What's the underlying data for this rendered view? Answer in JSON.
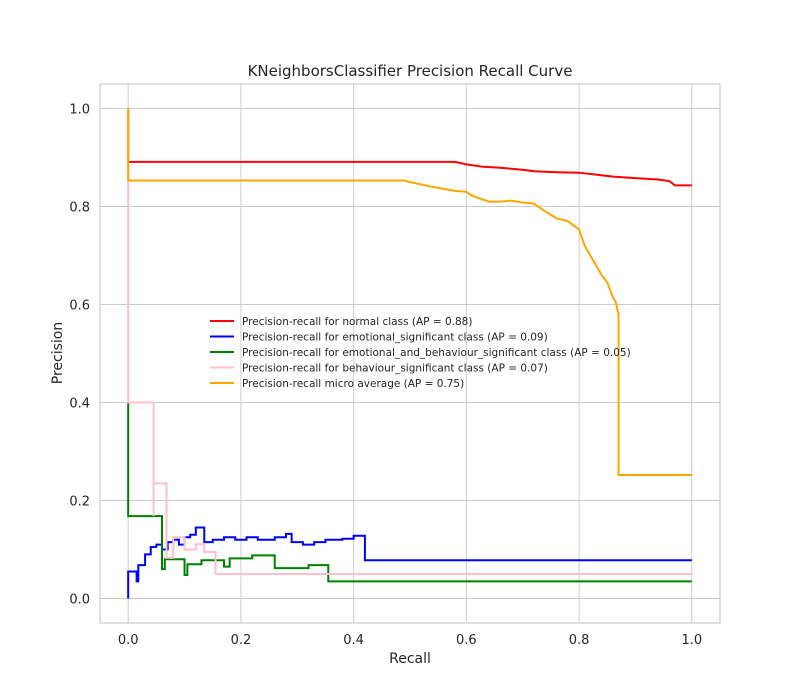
{
  "chart_data": {
    "type": "line",
    "title": "KNeighborsClassifier Precision Recall Curve",
    "xlabel": "Recall",
    "ylabel": "Precision",
    "xlim": [
      -0.05,
      1.05
    ],
    "ylim": [
      -0.05,
      1.05
    ],
    "x_ticks": [
      0.0,
      0.2,
      0.4,
      0.6,
      0.8,
      1.0
    ],
    "y_ticks": [
      0.0,
      0.2,
      0.4,
      0.6,
      0.8,
      1.0
    ],
    "x_tick_labels": [
      "0.0",
      "0.2",
      "0.4",
      "0.6",
      "0.8",
      "1.0"
    ],
    "y_tick_labels": [
      "0.0",
      "0.2",
      "0.4",
      "0.6",
      "0.8",
      "1.0"
    ],
    "grid": true,
    "legend_position": "center",
    "series": [
      {
        "name": "Precision-recall for normal class (AP = 0.88)",
        "color": "#ff0000",
        "points": [
          [
            0,
            1.0
          ],
          [
            0,
            0.891
          ],
          [
            0.58,
            0.891
          ],
          [
            0.6,
            0.886
          ],
          [
            0.63,
            0.881
          ],
          [
            0.66,
            0.879
          ],
          [
            0.7,
            0.875
          ],
          [
            0.72,
            0.872
          ],
          [
            0.76,
            0.87
          ],
          [
            0.8,
            0.869
          ],
          [
            0.83,
            0.865
          ],
          [
            0.86,
            0.861
          ],
          [
            0.9,
            0.858
          ],
          [
            0.94,
            0.855
          ],
          [
            0.96,
            0.852
          ],
          [
            0.97,
            0.843
          ],
          [
            1.0,
            0.843
          ]
        ]
      },
      {
        "name": "Precision-recall for emotional_significant class (AP = 0.09)",
        "color": "#0000ff",
        "points": [
          [
            0,
            0.0
          ],
          [
            0,
            0.055
          ],
          [
            0.015,
            0.055
          ],
          [
            0.015,
            0.035
          ],
          [
            0.018,
            0.035
          ],
          [
            0.018,
            0.068
          ],
          [
            0.03,
            0.068
          ],
          [
            0.03,
            0.09
          ],
          [
            0.04,
            0.09
          ],
          [
            0.04,
            0.105
          ],
          [
            0.05,
            0.105
          ],
          [
            0.05,
            0.11
          ],
          [
            0.06,
            0.11
          ],
          [
            0.06,
            0.1
          ],
          [
            0.07,
            0.1
          ],
          [
            0.07,
            0.115
          ],
          [
            0.08,
            0.115
          ],
          [
            0.08,
            0.12
          ],
          [
            0.09,
            0.12
          ],
          [
            0.09,
            0.11
          ],
          [
            0.1,
            0.11
          ],
          [
            0.1,
            0.125
          ],
          [
            0.11,
            0.125
          ],
          [
            0.11,
            0.13
          ],
          [
            0.12,
            0.13
          ],
          [
            0.12,
            0.145
          ],
          [
            0.135,
            0.145
          ],
          [
            0.135,
            0.115
          ],
          [
            0.15,
            0.115
          ],
          [
            0.15,
            0.12
          ],
          [
            0.17,
            0.12
          ],
          [
            0.17,
            0.125
          ],
          [
            0.19,
            0.125
          ],
          [
            0.19,
            0.12
          ],
          [
            0.21,
            0.12
          ],
          [
            0.21,
            0.125
          ],
          [
            0.23,
            0.125
          ],
          [
            0.23,
            0.12
          ],
          [
            0.26,
            0.12
          ],
          [
            0.26,
            0.125
          ],
          [
            0.28,
            0.125
          ],
          [
            0.28,
            0.132
          ],
          [
            0.29,
            0.132
          ],
          [
            0.29,
            0.115
          ],
          [
            0.31,
            0.115
          ],
          [
            0.31,
            0.11
          ],
          [
            0.33,
            0.11
          ],
          [
            0.33,
            0.115
          ],
          [
            0.35,
            0.115
          ],
          [
            0.35,
            0.12
          ],
          [
            0.38,
            0.12
          ],
          [
            0.38,
            0.122
          ],
          [
            0.4,
            0.122
          ],
          [
            0.4,
            0.128
          ],
          [
            0.42,
            0.128
          ],
          [
            0.42,
            0.078
          ],
          [
            1.0,
            0.078
          ]
        ]
      },
      {
        "name": "Precision-recall for emotional_and_behaviour_significant class (AP = 0.05)",
        "color": "#008000",
        "points": [
          [
            0,
            0.4
          ],
          [
            0,
            0.168
          ],
          [
            0.06,
            0.168
          ],
          [
            0.06,
            0.06
          ],
          [
            0.065,
            0.06
          ],
          [
            0.065,
            0.08
          ],
          [
            0.1,
            0.08
          ],
          [
            0.1,
            0.048
          ],
          [
            0.105,
            0.048
          ],
          [
            0.105,
            0.07
          ],
          [
            0.13,
            0.07
          ],
          [
            0.13,
            0.078
          ],
          [
            0.17,
            0.078
          ],
          [
            0.17,
            0.065
          ],
          [
            0.18,
            0.065
          ],
          [
            0.18,
            0.082
          ],
          [
            0.22,
            0.082
          ],
          [
            0.22,
            0.088
          ],
          [
            0.26,
            0.088
          ],
          [
            0.26,
            0.062
          ],
          [
            0.32,
            0.062
          ],
          [
            0.32,
            0.068
          ],
          [
            0.355,
            0.068
          ],
          [
            0.355,
            0.035
          ],
          [
            1.0,
            0.035
          ]
        ]
      },
      {
        "name": "Precision-recall for behaviour_significant class (AP = 0.07)",
        "color": "#ffc0cb",
        "points": [
          [
            0,
            1.0
          ],
          [
            0,
            0.4
          ],
          [
            0.045,
            0.4
          ],
          [
            0.045,
            0.168
          ],
          [
            0.045,
            0.235
          ],
          [
            0.068,
            0.235
          ],
          [
            0.068,
            0.083
          ],
          [
            0.08,
            0.083
          ],
          [
            0.08,
            0.125
          ],
          [
            0.1,
            0.125
          ],
          [
            0.1,
            0.1
          ],
          [
            0.12,
            0.1
          ],
          [
            0.12,
            0.111
          ],
          [
            0.135,
            0.111
          ],
          [
            0.135,
            0.095
          ],
          [
            0.155,
            0.095
          ],
          [
            0.155,
            0.05
          ],
          [
            0.35,
            0.05
          ],
          [
            0.35,
            0.05
          ],
          [
            1.0,
            0.05
          ]
        ]
      },
      {
        "name": "Precision-recall micro average (AP = 0.75)",
        "color": "#ffa500",
        "points": [
          [
            0,
            1.0
          ],
          [
            0,
            0.853
          ],
          [
            0.49,
            0.853
          ],
          [
            0.5,
            0.85
          ],
          [
            0.52,
            0.845
          ],
          [
            0.54,
            0.84
          ],
          [
            0.56,
            0.836
          ],
          [
            0.58,
            0.832
          ],
          [
            0.6,
            0.83
          ],
          [
            0.61,
            0.822
          ],
          [
            0.62,
            0.818
          ],
          [
            0.64,
            0.81
          ],
          [
            0.66,
            0.81
          ],
          [
            0.68,
            0.812
          ],
          [
            0.7,
            0.808
          ],
          [
            0.72,
            0.806
          ],
          [
            0.74,
            0.79
          ],
          [
            0.76,
            0.776
          ],
          [
            0.78,
            0.77
          ],
          [
            0.8,
            0.753
          ],
          [
            0.81,
            0.72
          ],
          [
            0.82,
            0.7
          ],
          [
            0.83,
            0.68
          ],
          [
            0.84,
            0.66
          ],
          [
            0.85,
            0.645
          ],
          [
            0.86,
            0.615
          ],
          [
            0.865,
            0.605
          ],
          [
            0.87,
            0.58
          ],
          [
            0.87,
            0.252
          ],
          [
            1.0,
            0.252
          ]
        ]
      }
    ]
  }
}
